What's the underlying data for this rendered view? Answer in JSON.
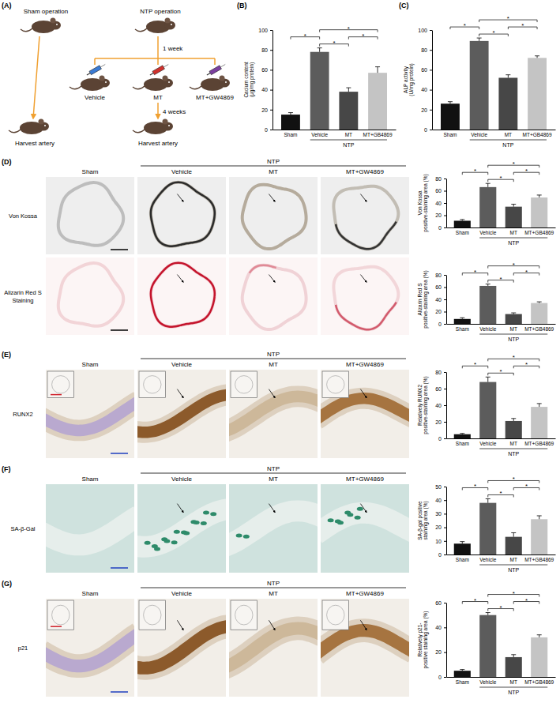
{
  "panel_labels": [
    "(A)",
    "(B)",
    "(C)",
    "(D)",
    "(E)",
    "(F)",
    "(G)"
  ],
  "schematic": {
    "sham": "Sham operation",
    "ntp": "NTP operation",
    "week1": "1 week",
    "groups": [
      "Vehicle",
      "MT",
      "MT+GW4869"
    ],
    "weeks4": "4 weeks",
    "harvest": "Harvest artery"
  },
  "image_panels": [
    {
      "stains": [
        [
          "Von Kossa"
        ],
        [
          "Alizarin Red S",
          "Staining"
        ]
      ],
      "columns": [
        "Sham",
        "Vehicle",
        "MT",
        "MT+GW4869"
      ],
      "group": {
        "label": "NTP",
        "from": "Vehicle",
        "to": "MT+GW4869"
      }
    },
    {
      "stains": [
        [
          "RUNX2"
        ]
      ],
      "columns": [
        "Sham",
        "Vehicle",
        "MT",
        "MT+GW4869"
      ],
      "group": {
        "label": "NTP",
        "from": "Vehicle",
        "to": "MT+GW4869"
      }
    },
    {
      "stains": [
        [
          "SA-β-Gal"
        ]
      ],
      "columns": [
        "Sham",
        "Vehicle",
        "MT",
        "MT+GW4869"
      ],
      "group": {
        "label": "NTP",
        "from": "Vehicle",
        "to": "MT+GW4869"
      }
    },
    {
      "stains": [
        [
          "p21"
        ]
      ],
      "columns": [
        "Sham",
        "Vehicle",
        "MT",
        "MT+GW4869"
      ],
      "group": {
        "label": "NTP",
        "from": "Vehicle",
        "to": "MT+GW4869"
      }
    }
  ],
  "chart_data": [
    {
      "type": "bar",
      "y_label": [
        "Cacium content",
        "(μg/mg protein)"
      ],
      "categories": [
        "Sham",
        "Vehicle",
        "MT",
        "MT+GB4869"
      ],
      "values": [
        15,
        78,
        38,
        57
      ],
      "errors": [
        2,
        4,
        4,
        6
      ],
      "colors": [
        "#111111",
        "#5c5c5c",
        "#474747",
        "#c4c4c4"
      ],
      "ylim": [
        0,
        100
      ],
      "yticks": [
        0,
        20,
        40,
        60,
        80,
        100
      ],
      "group": {
        "label": "NTP",
        "from": "Vehicle",
        "to": "MT+GB4869"
      },
      "brackets": [
        {
          "from": "Vehicle",
          "to": "MT",
          "label": "*"
        },
        {
          "from": "MT",
          "to": "MT+GB4869",
          "label": "*"
        },
        {
          "from": "Sham",
          "to": "Vehicle",
          "label": "*"
        },
        {
          "from": "Vehicle",
          "to": "MT+GB4869",
          "label": "*"
        }
      ]
    },
    {
      "type": "bar",
      "y_label": [
        "ALP activity",
        "(U/mg protein)"
      ],
      "categories": [
        "Sham",
        "Vehicle",
        "MT",
        "MT+GB4869"
      ],
      "values": [
        26,
        89,
        52,
        72
      ],
      "errors": [
        2,
        3,
        3,
        2
      ],
      "colors": [
        "#111111",
        "#5c5c5c",
        "#474747",
        "#c4c4c4"
      ],
      "ylim": [
        0,
        100
      ],
      "yticks": [
        0,
        20,
        40,
        60,
        80,
        100
      ],
      "group": {
        "label": "NTP",
        "from": "Vehicle",
        "to": "MT+GB4869"
      },
      "brackets": [
        {
          "from": "Vehicle",
          "to": "MT",
          "label": "*"
        },
        {
          "from": "MT",
          "to": "MT+GB4869",
          "label": "*"
        },
        {
          "from": "Sham",
          "to": "Vehicle",
          "label": "*"
        },
        {
          "from": "Vehicle",
          "to": "MT+GB4869",
          "label": "*"
        }
      ]
    },
    {
      "type": "bar",
      "y_label": [
        "Von Kossa",
        "positive-staining area (%)"
      ],
      "categories": [
        "Sham",
        "Vehicle",
        "MT",
        "MT+GB4869"
      ],
      "values": [
        11,
        66,
        34,
        49
      ],
      "errors": [
        2,
        6,
        4,
        4
      ],
      "colors": [
        "#111111",
        "#5c5c5c",
        "#474747",
        "#c4c4c4"
      ],
      "ylim": [
        0,
        80
      ],
      "yticks": [
        0,
        20,
        40,
        60,
        80
      ],
      "group": {
        "label": "NTP",
        "from": "Vehicle",
        "to": "MT+GB4869"
      },
      "brackets": [
        {
          "from": "Vehicle",
          "to": "MT",
          "label": "*"
        },
        {
          "from": "MT",
          "to": "MT+GB4869",
          "label": "*"
        },
        {
          "from": "Sham",
          "to": "Vehicle",
          "label": "*"
        },
        {
          "from": "Vehicle",
          "to": "MT+GB4869",
          "label": "*"
        }
      ]
    },
    {
      "type": "bar",
      "y_label": [
        "Alizarin Red S",
        "positive-staining area (%)"
      ],
      "categories": [
        "Sham",
        "Vehicle",
        "MT",
        "MT+GB4869"
      ],
      "values": [
        8,
        62,
        16,
        34
      ],
      "errors": [
        2,
        3,
        2,
        2
      ],
      "colors": [
        "#111111",
        "#5c5c5c",
        "#474747",
        "#c4c4c4"
      ],
      "ylim": [
        0,
        80
      ],
      "yticks": [
        0,
        20,
        40,
        60,
        80
      ],
      "group": {
        "label": "NTP",
        "from": "Vehicle",
        "to": "MT+GB4869"
      },
      "brackets": [
        {
          "from": "Vehicle",
          "to": "MT",
          "label": "*"
        },
        {
          "from": "MT",
          "to": "MT+GB4869",
          "label": "*"
        },
        {
          "from": "Sham",
          "to": "Vehicle",
          "label": "*"
        },
        {
          "from": "Vehicle",
          "to": "MT+GB4869",
          "label": "*"
        }
      ]
    },
    {
      "type": "bar",
      "y_label": [
        "Relatively RUNX2",
        "positive-staining area (%)"
      ],
      "categories": [
        "Sham",
        "Vehicle",
        "MT",
        "MT+GB4869"
      ],
      "values": [
        5,
        68,
        21,
        38
      ],
      "errors": [
        1,
        6,
        3,
        4
      ],
      "colors": [
        "#111111",
        "#5c5c5c",
        "#474747",
        "#c4c4c4"
      ],
      "ylim": [
        0,
        80
      ],
      "yticks": [
        0,
        20,
        40,
        60,
        80
      ],
      "group": {
        "label": "NTP",
        "from": "Vehicle",
        "to": "MT+GB4869"
      },
      "brackets": [
        {
          "from": "Vehicle",
          "to": "MT",
          "label": "*"
        },
        {
          "from": "MT",
          "to": "MT+GB4869",
          "label": "*"
        },
        {
          "from": "Sham",
          "to": "Vehicle",
          "label": "*"
        },
        {
          "from": "Vehicle",
          "to": "MT+GB4869",
          "label": "*"
        }
      ]
    },
    {
      "type": "bar",
      "y_label": [
        "SA-β-gal positive",
        "staining area (%)"
      ],
      "categories": [
        "Sham",
        "Vehicle",
        "MT",
        "MT+GB4869"
      ],
      "values": [
        8,
        38,
        13,
        26
      ],
      "errors": [
        1.5,
        3,
        3,
        2.5
      ],
      "colors": [
        "#111111",
        "#5c5c5c",
        "#474747",
        "#c4c4c4"
      ],
      "ylim": [
        0,
        50
      ],
      "yticks": [
        0,
        10,
        20,
        30,
        40,
        50
      ],
      "group": {
        "label": "NTP",
        "from": "Vehicle",
        "to": "MT+GB4869"
      },
      "brackets": [
        {
          "from": "Vehicle",
          "to": "MT",
          "label": "*"
        },
        {
          "from": "MT",
          "to": "MT+GB4869",
          "label": "*"
        },
        {
          "from": "Sham",
          "to": "Vehicle",
          "label": "*"
        },
        {
          "from": "Vehicle",
          "to": "MT+GB4869",
          "label": "*"
        }
      ]
    },
    {
      "type": "bar",
      "y_label": [
        "Relatively p21-",
        "positive staining area (%)"
      ],
      "categories": [
        "Sham",
        "Vehicle",
        "MT",
        "MT+GB4869"
      ],
      "values": [
        5,
        50,
        16,
        32
      ],
      "errors": [
        1,
        2,
        2,
        2
      ],
      "colors": [
        "#111111",
        "#5c5c5c",
        "#474747",
        "#c4c4c4"
      ],
      "ylim": [
        0,
        60
      ],
      "yticks": [
        0,
        20,
        40,
        60
      ],
      "group": {
        "label": "NTP",
        "from": "Vehicle",
        "to": "MT+GB4869"
      },
      "brackets": [
        {
          "from": "Vehicle",
          "to": "MT",
          "label": "*"
        },
        {
          "from": "MT",
          "to": "MT+GB4869",
          "label": "*"
        },
        {
          "from": "Sham",
          "to": "Vehicle",
          "label": "*"
        },
        {
          "from": "Vehicle",
          "to": "MT+GB4869",
          "label": "*"
        }
      ]
    }
  ]
}
